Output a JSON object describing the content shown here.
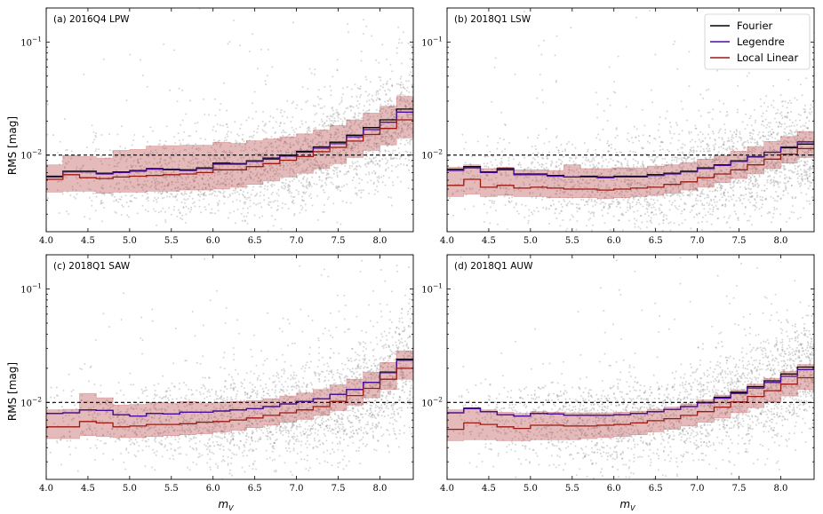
{
  "chart_data": {
    "type": "scatter",
    "x_label": "m",
    "x_label_sub": "V",
    "y_label": "RMS [mag]",
    "x_range": [
      4.0,
      8.4
    ],
    "y_range": [
      0.0021,
      0.2
    ],
    "y_scale": "log",
    "x_ticks": [
      "4.0",
      "4.5",
      "5.0",
      "5.5",
      "6.0",
      "6.5",
      "7.0",
      "7.5",
      "8.0"
    ],
    "y_ticks": [
      {
        "value": 0.01,
        "label": "10",
        "exp": "−2"
      },
      {
        "value": 0.1,
        "label": "10",
        "exp": "−1"
      }
    ],
    "reference_line": 0.01,
    "bin_edges": [
      4.0,
      4.2,
      4.4,
      4.6,
      4.8,
      5.0,
      5.2,
      5.4,
      5.6,
      5.8,
      6.0,
      6.2,
      6.4,
      6.6,
      6.8,
      7.0,
      7.2,
      7.4,
      7.6,
      7.8,
      8.0,
      8.2,
      8.4
    ],
    "legend": {
      "placement": "top-right of panel (b)",
      "entries": [
        {
          "name": "Fourier",
          "color": "#000000"
        },
        {
          "name": "Legendre",
          "color": "#4b0fa0"
        },
        {
          "name": "Local Linear",
          "color": "#9c1a12"
        }
      ]
    },
    "band_color": "#b4393a",
    "scatter_color": "#8a8a8a",
    "panels": [
      {
        "label": "(a) 2016Q4 LPW",
        "series": {
          "Fourier": [
            0.0065,
            0.0072,
            0.0072,
            0.0069,
            0.0071,
            0.0073,
            0.0076,
            0.0075,
            0.0074,
            0.0077,
            0.0085,
            0.0084,
            0.0089,
            0.0094,
            0.01,
            0.0108,
            0.0118,
            0.013,
            0.015,
            0.0175,
            0.0205,
            0.0255
          ],
          "Legendre": [
            0.0064,
            0.0071,
            0.0071,
            0.0068,
            0.007,
            0.0072,
            0.0075,
            0.0074,
            0.0073,
            0.0076,
            0.0083,
            0.0083,
            0.0088,
            0.0092,
            0.0098,
            0.0106,
            0.0115,
            0.0126,
            0.0145,
            0.0168,
            0.0195,
            0.024
          ],
          "Local Linear": [
            0.0061,
            0.0067,
            0.0063,
            0.0062,
            0.0064,
            0.0065,
            0.0066,
            0.0067,
            0.0068,
            0.007,
            0.0074,
            0.0074,
            0.0079,
            0.0084,
            0.009,
            0.0097,
            0.0107,
            0.0117,
            0.0133,
            0.0152,
            0.0172,
            0.0205
          ]
        },
        "band_lo": [
          0.0047,
          0.0048,
          0.0048,
          0.0046,
          0.0047,
          0.0047,
          0.0048,
          0.0048,
          0.0049,
          0.0049,
          0.005,
          0.0052,
          0.0055,
          0.0059,
          0.0064,
          0.0069,
          0.0076,
          0.0084,
          0.0095,
          0.011,
          0.0123,
          0.0142
        ],
        "band_hi": [
          0.0082,
          0.0099,
          0.0097,
          0.0094,
          0.011,
          0.0112,
          0.012,
          0.0121,
          0.0122,
          0.0122,
          0.013,
          0.0127,
          0.0134,
          0.0139,
          0.0145,
          0.0154,
          0.0166,
          0.0182,
          0.0205,
          0.0235,
          0.027,
          0.033
        ]
      },
      {
        "label": "(b) 2018Q1 LSW",
        "series": {
          "Fourier": [
            0.0075,
            0.0079,
            0.0071,
            0.0076,
            0.0068,
            0.0068,
            0.0066,
            0.0064,
            0.0065,
            0.0064,
            0.0065,
            0.0065,
            0.0067,
            0.0069,
            0.0072,
            0.0077,
            0.0082,
            0.0089,
            0.0097,
            0.0106,
            0.0116,
            0.0125
          ],
          "Legendre": [
            0.0073,
            0.0077,
            0.007,
            0.0074,
            0.0067,
            0.0067,
            0.0065,
            0.0064,
            0.0064,
            0.0063,
            0.0064,
            0.0064,
            0.0066,
            0.0068,
            0.0071,
            0.0076,
            0.0081,
            0.0088,
            0.0096,
            0.0106,
            0.0118,
            0.0131
          ],
          "Local Linear": [
            0.0054,
            0.0061,
            0.0052,
            0.0054,
            0.0051,
            0.0052,
            0.0051,
            0.005,
            0.005,
            0.0049,
            0.005,
            0.0051,
            0.0052,
            0.0055,
            0.0058,
            0.0063,
            0.0068,
            0.0074,
            0.0082,
            0.0092,
            0.0102,
            0.0114
          ]
        },
        "band_lo": [
          0.0043,
          0.0045,
          0.0043,
          0.0044,
          0.0043,
          0.0043,
          0.0042,
          0.0042,
          0.0042,
          0.0041,
          0.0042,
          0.0043,
          0.0044,
          0.0046,
          0.0049,
          0.0052,
          0.0057,
          0.0062,
          0.0068,
          0.0076,
          0.0085,
          0.0095
        ],
        "band_hi": [
          0.0078,
          0.0082,
          0.0076,
          0.0078,
          0.0074,
          0.0074,
          0.0073,
          0.0082,
          0.0076,
          0.0076,
          0.0077,
          0.0077,
          0.008,
          0.0082,
          0.0086,
          0.0092,
          0.0099,
          0.0108,
          0.0119,
          0.0132,
          0.0146,
          0.0162
        ]
      },
      {
        "label": "(c) 2018Q1 SAW",
        "series": {
          "Fourier": [
            0.008,
            0.0081,
            0.0086,
            0.0085,
            0.0078,
            0.0076,
            0.008,
            0.0079,
            0.0082,
            0.0082,
            0.0084,
            0.0086,
            0.0088,
            0.0092,
            0.0097,
            0.0102,
            0.0108,
            0.0118,
            0.013,
            0.015,
            0.0185,
            0.024
          ],
          "Legendre": [
            0.008,
            0.0081,
            0.0086,
            0.0085,
            0.0078,
            0.0076,
            0.008,
            0.0079,
            0.0082,
            0.0082,
            0.0084,
            0.0086,
            0.0088,
            0.0092,
            0.0097,
            0.0102,
            0.0108,
            0.0118,
            0.013,
            0.015,
            0.0183,
            0.0235
          ],
          "Local Linear": [
            0.0061,
            0.0061,
            0.0068,
            0.0066,
            0.0061,
            0.0062,
            0.0064,
            0.0064,
            0.0065,
            0.0067,
            0.0068,
            0.007,
            0.0073,
            0.0077,
            0.0081,
            0.0086,
            0.0092,
            0.0102,
            0.0115,
            0.0133,
            0.016,
            0.02
          ]
        },
        "band_lo": [
          0.0048,
          0.0048,
          0.0051,
          0.005,
          0.0049,
          0.0049,
          0.005,
          0.0051,
          0.0052,
          0.0053,
          0.0055,
          0.0057,
          0.006,
          0.0063,
          0.0067,
          0.0071,
          0.0077,
          0.0085,
          0.0095,
          0.011,
          0.013,
          0.016
        ],
        "band_hi": [
          0.0086,
          0.0087,
          0.012,
          0.011,
          0.0095,
          0.0096,
          0.01,
          0.0098,
          0.0102,
          0.0098,
          0.01,
          0.0102,
          0.0104,
          0.0108,
          0.0114,
          0.0121,
          0.013,
          0.0143,
          0.016,
          0.0185,
          0.0225,
          0.0285
        ]
      },
      {
        "label": "(d) 2018Q1 AUW",
        "series": {
          "Fourier": [
            0.0081,
            0.0089,
            0.0083,
            0.0078,
            0.0076,
            0.008,
            0.0079,
            0.0077,
            0.0077,
            0.0077,
            0.0078,
            0.008,
            0.0083,
            0.0087,
            0.0092,
            0.01,
            0.0111,
            0.0123,
            0.0138,
            0.0155,
            0.0178,
            0.0205
          ],
          "Legendre": [
            0.0081,
            0.0088,
            0.0083,
            0.0078,
            0.0076,
            0.008,
            0.0079,
            0.0077,
            0.0077,
            0.0077,
            0.0078,
            0.008,
            0.0083,
            0.0087,
            0.0092,
            0.0099,
            0.0109,
            0.012,
            0.0134,
            0.015,
            0.017,
            0.0195
          ],
          "Local Linear": [
            0.0058,
            0.0066,
            0.0064,
            0.0061,
            0.0059,
            0.0063,
            0.0063,
            0.0062,
            0.0062,
            0.0063,
            0.0064,
            0.0066,
            0.0069,
            0.0072,
            0.0077,
            0.0083,
            0.0091,
            0.0101,
            0.0113,
            0.0127,
            0.0145,
            0.0165
          ]
        },
        "band_lo": [
          0.0046,
          0.0047,
          0.0047,
          0.0046,
          0.0046,
          0.0047,
          0.0047,
          0.0047,
          0.0048,
          0.0049,
          0.005,
          0.0052,
          0.0055,
          0.0058,
          0.0062,
          0.0067,
          0.0073,
          0.0081,
          0.009,
          0.0101,
          0.0114,
          0.013
        ],
        "band_hi": [
          0.0086,
          0.009,
          0.0086,
          0.0082,
          0.008,
          0.0083,
          0.0082,
          0.0081,
          0.0081,
          0.0081,
          0.0082,
          0.0084,
          0.0087,
          0.0091,
          0.0097,
          0.0105,
          0.0116,
          0.0129,
          0.0145,
          0.0163,
          0.0187,
          0.0216
        ]
      }
    ]
  }
}
